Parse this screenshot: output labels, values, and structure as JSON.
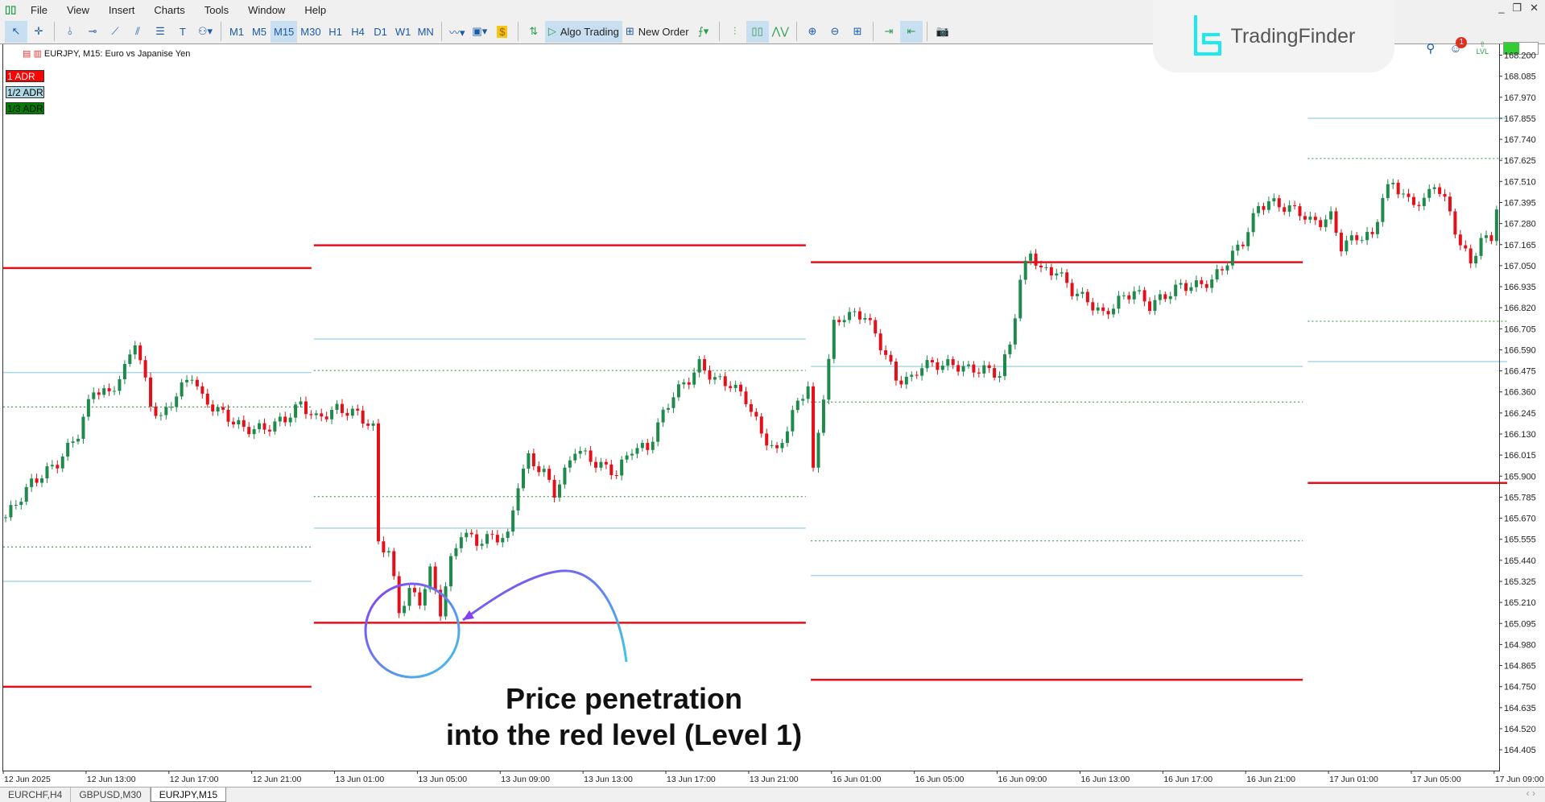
{
  "menu": [
    "File",
    "View",
    "Insert",
    "Charts",
    "Tools",
    "Window",
    "Help"
  ],
  "toolbar": {
    "timeframes": [
      "M1",
      "M5",
      "M15",
      "M30",
      "H1",
      "H4",
      "D1",
      "W1",
      "MN"
    ],
    "active_timeframe": "M15",
    "algo_trading": "Algo Trading",
    "new_order": "New Order",
    "notification_count": "1",
    "lvl_label": "LVL"
  },
  "logo": {
    "name": "TradingFinder"
  },
  "chart": {
    "title": "EURJPY, M15:  Euro vs Japanise Yen",
    "legend": [
      {
        "label": "1 ADR",
        "bg": "#ff0000",
        "color": "#ffffff"
      },
      {
        "label": "1/2 ADR",
        "bg": "#add8e6",
        "color": "#000000"
      },
      {
        "label": "1/3 ADR",
        "bg": "#008000",
        "color": "#000000"
      }
    ],
    "colors": {
      "bull": "#1f8a4c",
      "bear": "#e3101a",
      "adr1": "#e3101a",
      "adr_half": "#a9d8e6",
      "adr_third": "#2e8b3e"
    },
    "price_ticks": [
      "168.200",
      "168.085",
      "167.970",
      "167.855",
      "167.740",
      "167.625",
      "167.510",
      "167.395",
      "167.280",
      "167.165",
      "167.050",
      "166.935",
      "166.820",
      "166.705",
      "166.590",
      "166.475",
      "166.360",
      "166.245",
      "166.130",
      "166.015",
      "165.900",
      "165.785",
      "165.670",
      "165.555",
      "165.440",
      "165.325",
      "165.210",
      "165.095",
      "164.980",
      "164.865",
      "164.750",
      "164.635",
      "164.520",
      "164.405"
    ],
    "time_ticks": [
      "12 Jun 2025",
      "12 Jun 13:00",
      "12 Jun 17:00",
      "12 Jun 21:00",
      "13 Jun 01:00",
      "13 Jun 05:00",
      "13 Jun 09:00",
      "13 Jun 13:00",
      "13 Jun 17:00",
      "13 Jun 21:00",
      "16 Jun 01:00",
      "16 Jun 05:00",
      "16 Jun 09:00",
      "16 Jun 13:00",
      "16 Jun 17:00",
      "16 Jun 21:00",
      "17 Jun 01:00",
      "17 Jun 05:00",
      "17 Jun 09:00"
    ],
    "adr_levels": [
      {
        "day": "12 Jun",
        "adr1": [
          167.037,
          164.749
        ],
        "adr_half": [
          166.466,
          165.325
        ],
        "adr_third": [
          166.278,
          165.513
        ]
      },
      {
        "day": "13 Jun",
        "adr1": [
          167.161,
          165.099
        ],
        "adr_half": [
          166.649,
          165.616
        ],
        "adr_third": [
          166.477,
          165.788
        ]
      },
      {
        "day": "16 Jun",
        "adr1": [
          167.069,
          164.787
        ],
        "adr_half": [
          166.499,
          165.357
        ],
        "adr_third": [
          166.305,
          165.546
        ]
      },
      {
        "day": "17 Jun",
        "adr1": [
          165.863
        ],
        "adr_half": [
          167.855,
          166.526
        ],
        "adr_third": [
          167.635,
          166.746
        ]
      }
    ],
    "price_path": [
      [
        "12 Jun 09:00",
        165.675
      ],
      [
        "12 Jun 10:15",
        165.863
      ],
      [
        "12 Jun 11:30",
        165.971
      ],
      [
        "12 Jun 12:30",
        166.133
      ],
      [
        "12 Jun 13:15",
        166.375
      ],
      [
        "12 Jun 14:00",
        166.348
      ],
      [
        "12 Jun 14:45",
        166.483
      ],
      [
        "12 Jun 15:15",
        166.644
      ],
      [
        "12 Jun 16:00",
        166.294
      ],
      [
        "12 Jun 16:30",
        166.213
      ],
      [
        "12 Jun 17:15",
        166.348
      ],
      [
        "12 Jun 18:00",
        166.456
      ],
      [
        "12 Jun 18:30",
        166.321
      ],
      [
        "12 Jun 19:30",
        166.24
      ],
      [
        "12 Jun 20:30",
        166.159
      ],
      [
        "12 Jun 21:30",
        166.159
      ],
      [
        "12 Jun 22:30",
        166.213
      ],
      [
        "12 Jun 23:15",
        166.294
      ],
      [
        "13 Jun 00:00",
        166.213
      ],
      [
        "13 Jun 01:00",
        166.267
      ],
      [
        "13 Jun 02:00",
        166.24
      ],
      [
        "13 Jun 02:45",
        166.159
      ],
      [
        "13 Jun 03:00",
        165.54
      ],
      [
        "13 Jun 03:30",
        165.486
      ],
      [
        "13 Jun 04:00",
        165.163
      ],
      [
        "13 Jun 04:30",
        165.271
      ],
      [
        "13 Jun 05:00",
        165.217
      ],
      [
        "13 Jun 05:30",
        165.379
      ],
      [
        "13 Jun 06:00",
        165.163
      ],
      [
        "13 Jun 06:30",
        165.433
      ],
      [
        "13 Jun 07:00",
        165.594
      ],
      [
        "13 Jun 07:45",
        165.54
      ],
      [
        "13 Jun 08:30",
        165.567
      ],
      [
        "13 Jun 09:15",
        165.567
      ],
      [
        "13 Jun 09:45",
        165.863
      ],
      [
        "13 Jun 10:15",
        165.998
      ],
      [
        "13 Jun 11:00",
        165.917
      ],
      [
        "13 Jun 11:30",
        165.81
      ],
      [
        "13 Jun 12:00",
        165.917
      ],
      [
        "13 Jun 12:30",
        166.052
      ],
      [
        "13 Jun 13:30",
        165.971
      ],
      [
        "13 Jun 14:30",
        165.917
      ],
      [
        "13 Jun 15:15",
        166.052
      ],
      [
        "13 Jun 16:00",
        166.052
      ],
      [
        "13 Jun 16:45",
        166.24
      ],
      [
        "13 Jun 17:15",
        166.348
      ],
      [
        "13 Jun 18:00",
        166.429
      ],
      [
        "13 Jun 18:30",
        166.509
      ],
      [
        "13 Jun 19:15",
        166.429
      ],
      [
        "13 Jun 20:00",
        166.402
      ],
      [
        "13 Jun 20:45",
        166.321
      ],
      [
        "13 Jun 21:30",
        166.133
      ],
      [
        "13 Jun 22:15",
        166.025
      ],
      [
        "13 Jun 23:00",
        166.24
      ],
      [
        "13 Jun 23:30",
        166.348
      ],
      [
        "13 Jun 23:45",
        166.402
      ],
      [
        "16 Jun 00:00",
        165.917
      ],
      [
        "16 Jun 00:30",
        166.348
      ],
      [
        "16 Jun 01:00",
        166.725
      ],
      [
        "16 Jun 01:30",
        166.779
      ],
      [
        "16 Jun 02:00",
        166.779
      ],
      [
        "16 Jun 02:30",
        166.779
      ],
      [
        "16 Jun 03:00",
        166.671
      ],
      [
        "16 Jun 03:30",
        166.563
      ],
      [
        "16 Jun 04:00",
        166.429
      ],
      [
        "16 Jun 04:45",
        166.429
      ],
      [
        "16 Jun 05:15",
        166.509
      ],
      [
        "16 Jun 06:00",
        166.509
      ],
      [
        "16 Jun 06:45",
        166.509
      ],
      [
        "16 Jun 07:30",
        166.483
      ],
      [
        "16 Jun 08:15",
        166.483
      ],
      [
        "16 Jun 09:00",
        166.456
      ],
      [
        "16 Jun 09:30",
        166.617
      ],
      [
        "16 Jun 10:00",
        166.967
      ],
      [
        "16 Jun 10:30",
        167.129
      ],
      [
        "16 Jun 11:00",
        167.021
      ],
      [
        "16 Jun 11:45",
        167.021
      ],
      [
        "16 Jun 12:30",
        166.913
      ],
      [
        "16 Jun 13:15",
        166.859
      ],
      [
        "16 Jun 14:00",
        166.779
      ],
      [
        "16 Jun 14:45",
        166.859
      ],
      [
        "16 Jun 15:30",
        166.913
      ],
      [
        "16 Jun 16:15",
        166.832
      ],
      [
        "16 Jun 17:00",
        166.886
      ],
      [
        "16 Jun 17:45",
        166.94
      ],
      [
        "16 Jun 18:30",
        166.94
      ],
      [
        "16 Jun 19:15",
        166.967
      ],
      [
        "16 Jun 20:00",
        167.075
      ],
      [
        "16 Jun 20:45",
        167.182
      ],
      [
        "16 Jun 21:30",
        167.371
      ],
      [
        "16 Jun 22:00",
        167.398
      ],
      [
        "16 Jun 22:45",
        167.371
      ],
      [
        "16 Jun 23:30",
        167.344
      ],
      [
        "17 Jun 00:00",
        167.29
      ],
      [
        "17 Jun 00:30",
        167.29
      ],
      [
        "17 Jun 01:00",
        167.317
      ],
      [
        "17 Jun 01:30",
        167.156
      ],
      [
        "17 Jun 02:15",
        167.209
      ],
      [
        "17 Jun 03:00",
        167.209
      ],
      [
        "17 Jun 03:30",
        167.425
      ],
      [
        "17 Jun 04:00",
        167.505
      ],
      [
        "17 Jun 04:45",
        167.398
      ],
      [
        "17 Jun 05:30",
        167.398
      ],
      [
        "17 Jun 06:00",
        167.505
      ],
      [
        "17 Jun 06:45",
        167.344
      ],
      [
        "17 Jun 07:15",
        167.156
      ],
      [
        "17 Jun 07:45",
        167.075
      ],
      [
        "17 Jun 08:15",
        167.182
      ],
      [
        "17 Jun 08:45",
        167.209
      ],
      [
        "17 Jun 09:00",
        167.371
      ]
    ]
  },
  "annotation": {
    "line1": "Price penetration",
    "line2": "into the red level (Level 1)"
  },
  "tabs": [
    "EURCHF,H4",
    "GBPUSD,M30",
    "EURJPY,M15"
  ],
  "active_tab": "EURJPY,M15"
}
